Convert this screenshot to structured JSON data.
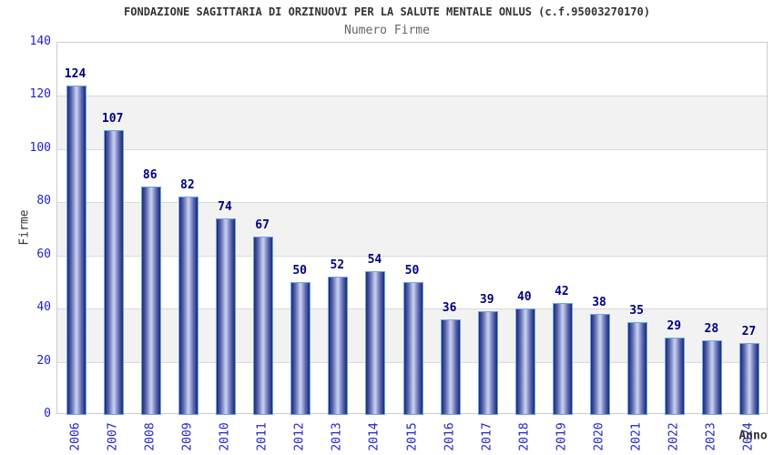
{
  "chart_data": {
    "type": "bar",
    "title": "FONDAZIONE SAGITTARIA DI ORZINUOVI PER LA SALUTE MENTALE ONLUS (c.f.95003270170)",
    "subtitle": "Numero Firme",
    "xlabel": "Anno",
    "ylabel": "Firme",
    "categories": [
      "2006",
      "2007",
      "2008",
      "2009",
      "2010",
      "2011",
      "2012",
      "2013",
      "2014",
      "2015",
      "2016",
      "2017",
      "2018",
      "2019",
      "2020",
      "2021",
      "2022",
      "2023",
      "2024"
    ],
    "values": [
      124,
      107,
      86,
      82,
      74,
      67,
      50,
      52,
      54,
      50,
      36,
      39,
      40,
      42,
      38,
      35,
      29,
      28,
      27
    ],
    "ylim": [
      0,
      140
    ],
    "ytick_step": 20,
    "yticks": [
      0,
      20,
      40,
      60,
      80,
      100,
      120,
      140
    ],
    "grid": "horizontal-bands-alternating",
    "legend": "none",
    "colors": {
      "bar_border": "#6fa6e0",
      "bar_edge_dark": "#1c2878",
      "bar_mid": "#5a68b0",
      "bar_highlight": "#cdd4f0",
      "value_label": "#000080",
      "axis_tick_blue": "#2222cc",
      "band_gray": "#f2f2f2",
      "gridline": "#d9d9d9",
      "plot_border": "#cccccc",
      "title_color": "#333333",
      "subtitle_color": "#666666"
    }
  }
}
